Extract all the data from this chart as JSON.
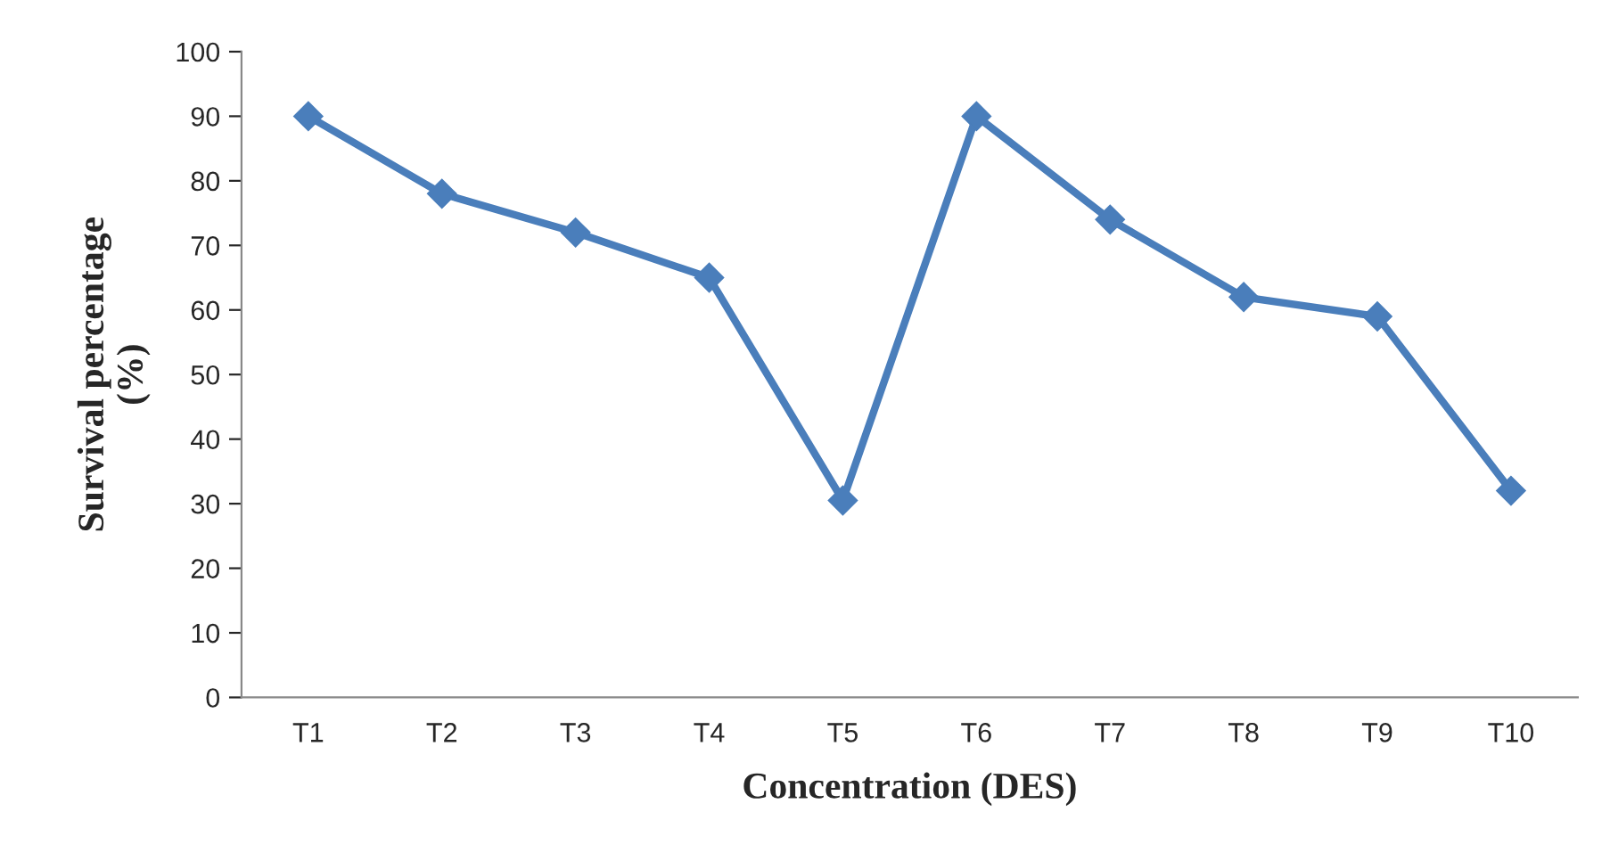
{
  "chart_data": {
    "type": "line",
    "xlabel": "Concentration (DES)",
    "ylabel": "Survival percentage\n(%)",
    "categories": [
      "T1",
      "T2",
      "T3",
      "T4",
      "T5",
      "T6",
      "T7",
      "T8",
      "T9",
      "T10"
    ],
    "series": [
      {
        "color": "#4a7ebb",
        "values": [
          90,
          78,
          72,
          65,
          30.5,
          90,
          74,
          62,
          59,
          32
        ]
      }
    ],
    "ylim": [
      0,
      100
    ],
    "yticks": [
      0,
      10,
      20,
      30,
      40,
      50,
      60,
      70,
      80,
      90,
      100
    ],
    "grid": false,
    "legend": false,
    "marker": "diamond",
    "line_style": "solid"
  }
}
